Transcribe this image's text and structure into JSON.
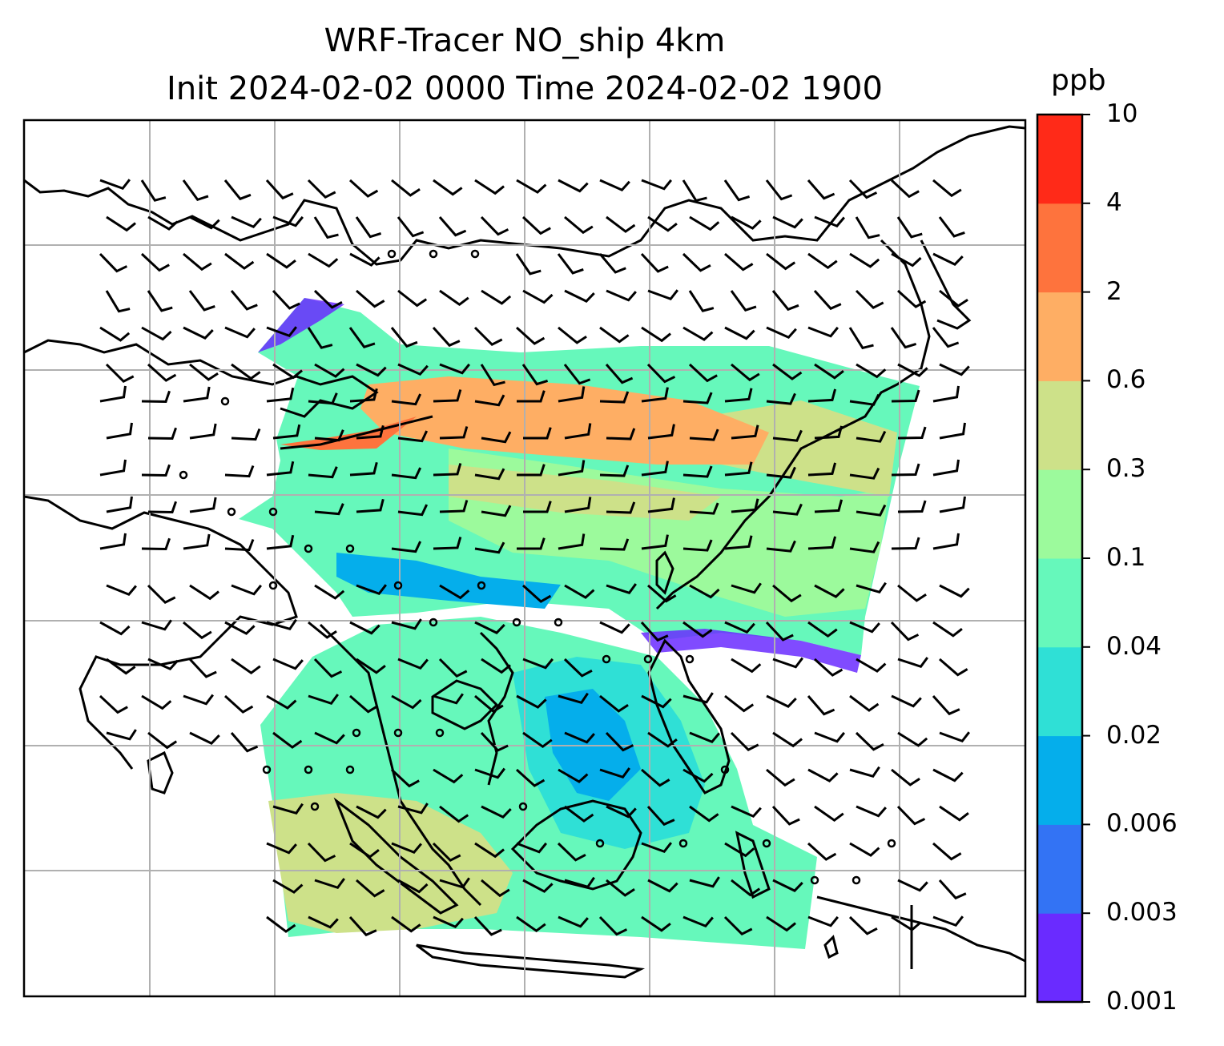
{
  "title": {
    "line1": "WRF-Tracer NO_ship 4km",
    "line2": "Init 2024-02-02 0000 Time 2024-02-02 1900"
  },
  "colorbar": {
    "unit": "ppb",
    "levels": [
      "0.001",
      "0.003",
      "0.006",
      "0.02",
      "0.04",
      "0.1",
      "0.3",
      "0.6",
      "2",
      "4",
      "10"
    ],
    "colors": [
      "#6a2bff",
      "#3373f4",
      "#05aeeb",
      "#2fe0d6",
      "#66f8bb",
      "#9cfa9c",
      "#cde189",
      "#feae64",
      "#fe733d",
      "#ff2a18"
    ]
  }
}
